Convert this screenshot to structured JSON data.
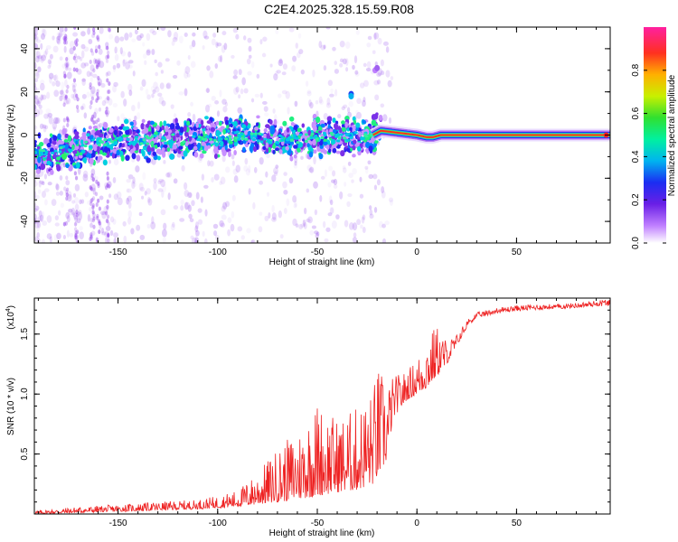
{
  "title": "C2E4.2025.328.15.59.R08",
  "colors": {
    "axis": "#000000",
    "snr_line": "#ee2222"
  },
  "chart_data": [
    {
      "type": "heatmap",
      "name": "spectrogram",
      "xlabel": "Height of straight line (km)",
      "ylabel": "Frequency (Hz)",
      "xlim": [
        -192,
        97
      ],
      "ylim": [
        -50,
        50
      ],
      "xticks": [
        -150,
        -100,
        -50,
        0,
        50
      ],
      "yticks": [
        -40,
        -20,
        0,
        20,
        40
      ],
      "ridge": {
        "description": "dominant frequency track",
        "x": [
          -192,
          -175,
          -160,
          -150,
          -130,
          -110,
          -90,
          -70,
          -50,
          -35,
          -22,
          -18,
          0,
          5,
          8,
          12,
          97
        ],
        "freq": [
          -9,
          -7,
          -4,
          -3,
          -2,
          -1,
          0,
          -2,
          -1,
          -1,
          0,
          2,
          0,
          -1,
          -1,
          0,
          0
        ]
      },
      "colorbar": {
        "label": "Normalized spectral amplitude",
        "range": [
          0.0,
          1.0
        ],
        "ticks": [
          "0.0",
          "0.2",
          "0.4",
          "0.6",
          "0.8"
        ]
      }
    },
    {
      "type": "line",
      "name": "snr",
      "xlabel": "Height of straight line (km)",
      "ylabel": "SNR (10 * v/v)",
      "multiplier_label": "(x10",
      "multiplier_exp": "4",
      "multiplier_close": ")",
      "xlim": [
        -192,
        97
      ],
      "ylim": [
        0,
        1.8
      ],
      "xticks": [
        -150,
        -100,
        -50,
        0,
        50
      ],
      "yticks": [
        "0.5",
        "1.0",
        "1.5"
      ],
      "series": [
        {
          "name": "SNR",
          "description": "noisy envelope; baseline (low) and peak (high) in units of 10^4",
          "x": [
            -192,
            -170,
            -150,
            -130,
            -110,
            -100,
            -90,
            -80,
            -70,
            -60,
            -50,
            -40,
            -30,
            -22,
            -20,
            -15,
            -12,
            -5,
            0,
            5,
            10,
            15,
            20,
            25,
            30,
            40,
            50,
            60,
            70,
            80,
            90,
            97
          ],
          "low": [
            0.0,
            0.01,
            0.02,
            0.03,
            0.04,
            0.05,
            0.06,
            0.08,
            0.1,
            0.12,
            0.15,
            0.18,
            0.2,
            0.25,
            0.3,
            0.45,
            0.8,
            0.95,
            1.0,
            1.05,
            1.15,
            1.25,
            1.4,
            1.55,
            1.62,
            1.66,
            1.68,
            1.69,
            1.7,
            1.71,
            1.72,
            1.72
          ],
          "high": [
            0.03,
            0.06,
            0.08,
            0.1,
            0.12,
            0.15,
            0.2,
            0.35,
            0.55,
            0.7,
            0.95,
            0.8,
            0.9,
            1.05,
            1.25,
            1.1,
            1.15,
            1.2,
            1.3,
            1.5,
            1.58,
            1.45,
            1.5,
            1.62,
            1.68,
            1.72,
            1.74,
            1.75,
            1.75,
            1.76,
            1.78,
            1.8
          ]
        }
      ]
    }
  ]
}
